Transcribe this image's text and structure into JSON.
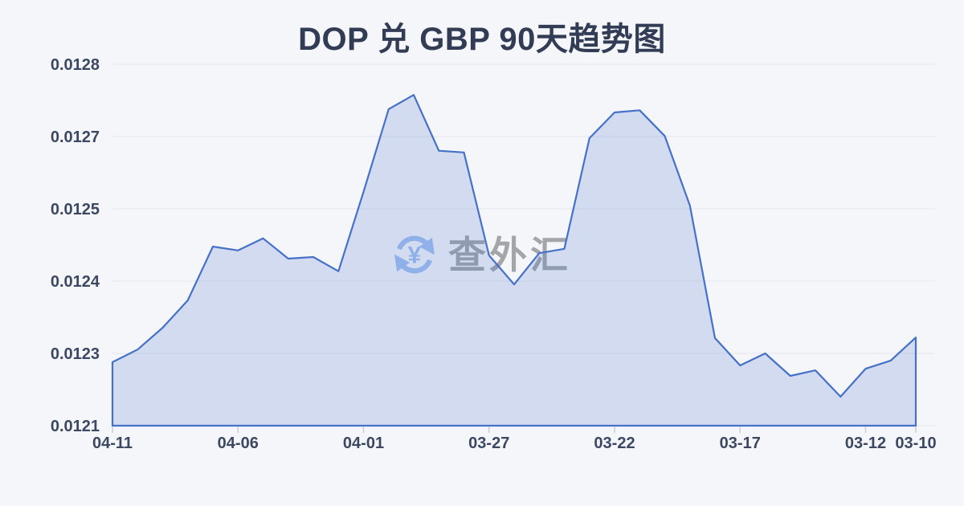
{
  "page": {
    "background": "#f5f6fa"
  },
  "chart_data": {
    "type": "area",
    "title": "DOP 兑 GBP 90天趋势图",
    "xlabel": "",
    "ylabel": "",
    "x": [
      "04-11",
      "04-10",
      "04-09",
      "04-08",
      "04-07",
      "04-06",
      "04-05",
      "04-04",
      "04-03",
      "04-02",
      "04-01",
      "03-31",
      "03-30",
      "03-29",
      "03-28",
      "03-27",
      "03-26",
      "03-25",
      "03-24",
      "03-23",
      "03-22",
      "03-21",
      "03-20",
      "03-19",
      "03-18",
      "03-17",
      "03-16",
      "03-15",
      "03-14",
      "03-13",
      "03-12",
      "03-11",
      "03-10"
    ],
    "values": [
      0.012256,
      0.012279,
      0.012319,
      0.012369,
      0.012467,
      0.01246,
      0.012482,
      0.012445,
      0.012448,
      0.012422,
      0.012567,
      0.012718,
      0.012744,
      0.012642,
      0.012639,
      0.012451,
      0.012398,
      0.012455,
      0.012463,
      0.012665,
      0.012712,
      0.012716,
      0.012669,
      0.012542,
      0.0123,
      0.01225,
      0.012272,
      0.012231,
      0.012241,
      0.012193,
      0.012244,
      0.012259,
      0.012301
    ],
    "ylim": [
      0.01214,
      0.0128
    ],
    "y_tick_labels": [
      "0.0128",
      "0.0127",
      "0.0125",
      "0.0124",
      "0.0123",
      "0.0121"
    ],
    "x_tick_labels": [
      "04-11",
      "04-06",
      "04-01",
      "03-27",
      "03-22",
      "03-17",
      "03-12",
      "03-10"
    ],
    "grid": true,
    "legend": false,
    "line_color": "#4671c8",
    "fill_color": "rgba(70,113,200,0.20)",
    "grid_color": "#e4e6ed",
    "tick_color": "#c9ced8",
    "label_color": "#3c4862",
    "title_color": "#323d55"
  },
  "watermark": {
    "text": "查外汇",
    "icon": "currency-exchange-refresh-icon",
    "icon_symbol": "¥",
    "icon_color": "#a2c0f2",
    "text_color": "#a3a5a9"
  }
}
